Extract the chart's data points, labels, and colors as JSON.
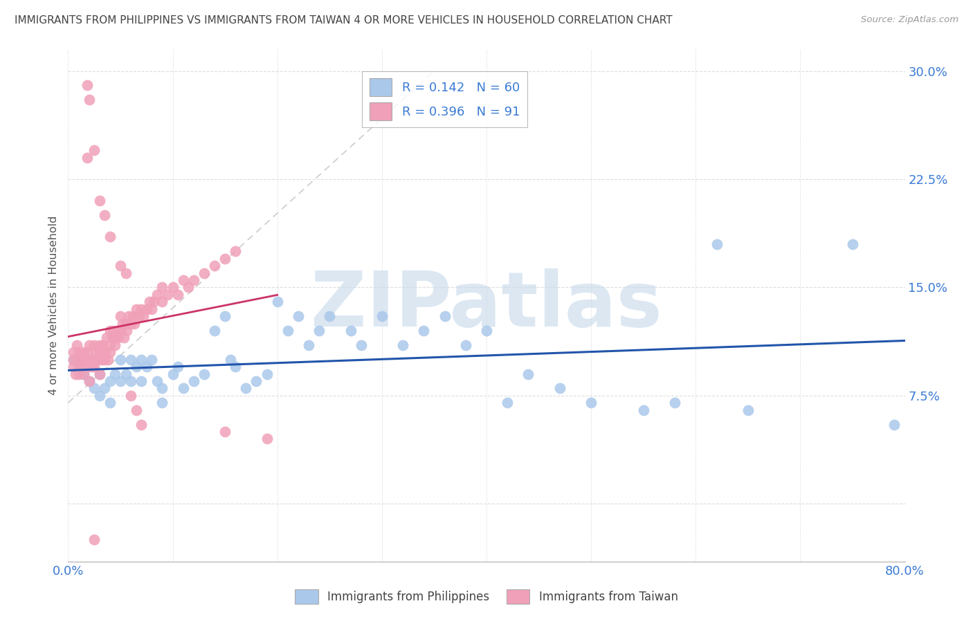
{
  "title": "IMMIGRANTS FROM PHILIPPINES VS IMMIGRANTS FROM TAIWAN 4 OR MORE VEHICLES IN HOUSEHOLD CORRELATION CHART",
  "source": "Source: ZipAtlas.com",
  "ylabel": "4 or more Vehicles in Household",
  "xlim": [
    0.0,
    0.8
  ],
  "ylim": [
    -0.04,
    0.315
  ],
  "blue_R": "0.142",
  "blue_N": 60,
  "pink_R": "0.396",
  "pink_N": 91,
  "blue_color": "#aac8ea",
  "pink_color": "#f0a0b8",
  "blue_line_color": "#2255aa",
  "pink_line_color": "#cc3366",
  "gray_diag_color": "#cccccc",
  "watermark": "ZIPatlas",
  "watermark_color": "#c5d8ea",
  "legend_label_blue": "Immigrants from Philippines",
  "legend_label_pink": "Immigrants from Taiwan",
  "blue_scatter_x": [
    0.005,
    0.01,
    0.015,
    0.02,
    0.025,
    0.03,
    0.03,
    0.035,
    0.04,
    0.04,
    0.045,
    0.05,
    0.05,
    0.055,
    0.06,
    0.06,
    0.065,
    0.07,
    0.07,
    0.075,
    0.08,
    0.085,
    0.09,
    0.09,
    0.1,
    0.105,
    0.11,
    0.12,
    0.13,
    0.14,
    0.15,
    0.155,
    0.16,
    0.17,
    0.18,
    0.19,
    0.2,
    0.21,
    0.22,
    0.23,
    0.24,
    0.25,
    0.27,
    0.28,
    0.3,
    0.32,
    0.34,
    0.36,
    0.38,
    0.4,
    0.42,
    0.44,
    0.47,
    0.5,
    0.55,
    0.58,
    0.62,
    0.65,
    0.75,
    0.79
  ],
  "blue_scatter_y": [
    0.1,
    0.095,
    0.09,
    0.085,
    0.08,
    0.09,
    0.075,
    0.08,
    0.085,
    0.07,
    0.09,
    0.1,
    0.085,
    0.09,
    0.1,
    0.085,
    0.095,
    0.1,
    0.085,
    0.095,
    0.1,
    0.085,
    0.08,
    0.07,
    0.09,
    0.095,
    0.08,
    0.085,
    0.09,
    0.12,
    0.13,
    0.1,
    0.095,
    0.08,
    0.085,
    0.09,
    0.14,
    0.12,
    0.13,
    0.11,
    0.12,
    0.13,
    0.12,
    0.11,
    0.13,
    0.11,
    0.12,
    0.13,
    0.11,
    0.12,
    0.07,
    0.09,
    0.08,
    0.07,
    0.065,
    0.07,
    0.18,
    0.065,
    0.18,
    0.055
  ],
  "pink_scatter_x": [
    0.005,
    0.005,
    0.005,
    0.007,
    0.008,
    0.009,
    0.01,
    0.01,
    0.01,
    0.012,
    0.013,
    0.015,
    0.015,
    0.015,
    0.017,
    0.018,
    0.02,
    0.02,
    0.02,
    0.02,
    0.022,
    0.023,
    0.025,
    0.025,
    0.025,
    0.027,
    0.028,
    0.03,
    0.03,
    0.03,
    0.032,
    0.033,
    0.035,
    0.035,
    0.037,
    0.038,
    0.04,
    0.04,
    0.04,
    0.042,
    0.043,
    0.045,
    0.045,
    0.047,
    0.048,
    0.05,
    0.05,
    0.052,
    0.053,
    0.055,
    0.056,
    0.058,
    0.06,
    0.062,
    0.063,
    0.065,
    0.068,
    0.07,
    0.072,
    0.075,
    0.078,
    0.08,
    0.082,
    0.085,
    0.09,
    0.09,
    0.095,
    0.1,
    0.105,
    0.11,
    0.115,
    0.12,
    0.13,
    0.14,
    0.15,
    0.16,
    0.02,
    0.025,
    0.03,
    0.035,
    0.04,
    0.05,
    0.055,
    0.06,
    0.065,
    0.07,
    0.018,
    0.018,
    0.15,
    0.19,
    0.025
  ],
  "pink_scatter_y": [
    0.1,
    0.095,
    0.105,
    0.09,
    0.11,
    0.1,
    0.095,
    0.105,
    0.09,
    0.1,
    0.095,
    0.105,
    0.1,
    0.09,
    0.095,
    0.105,
    0.1,
    0.095,
    0.085,
    0.11,
    0.1,
    0.095,
    0.11,
    0.1,
    0.095,
    0.105,
    0.1,
    0.11,
    0.105,
    0.09,
    0.1,
    0.11,
    0.105,
    0.1,
    0.115,
    0.1,
    0.12,
    0.11,
    0.105,
    0.115,
    0.12,
    0.115,
    0.11,
    0.12,
    0.115,
    0.13,
    0.12,
    0.125,
    0.115,
    0.125,
    0.12,
    0.13,
    0.125,
    0.13,
    0.125,
    0.135,
    0.13,
    0.135,
    0.13,
    0.135,
    0.14,
    0.135,
    0.14,
    0.145,
    0.15,
    0.14,
    0.145,
    0.15,
    0.145,
    0.155,
    0.15,
    0.155,
    0.16,
    0.165,
    0.17,
    0.175,
    0.28,
    0.245,
    0.21,
    0.2,
    0.185,
    0.165,
    0.16,
    0.075,
    0.065,
    0.055,
    0.24,
    0.29,
    0.05,
    0.045,
    -0.025
  ]
}
